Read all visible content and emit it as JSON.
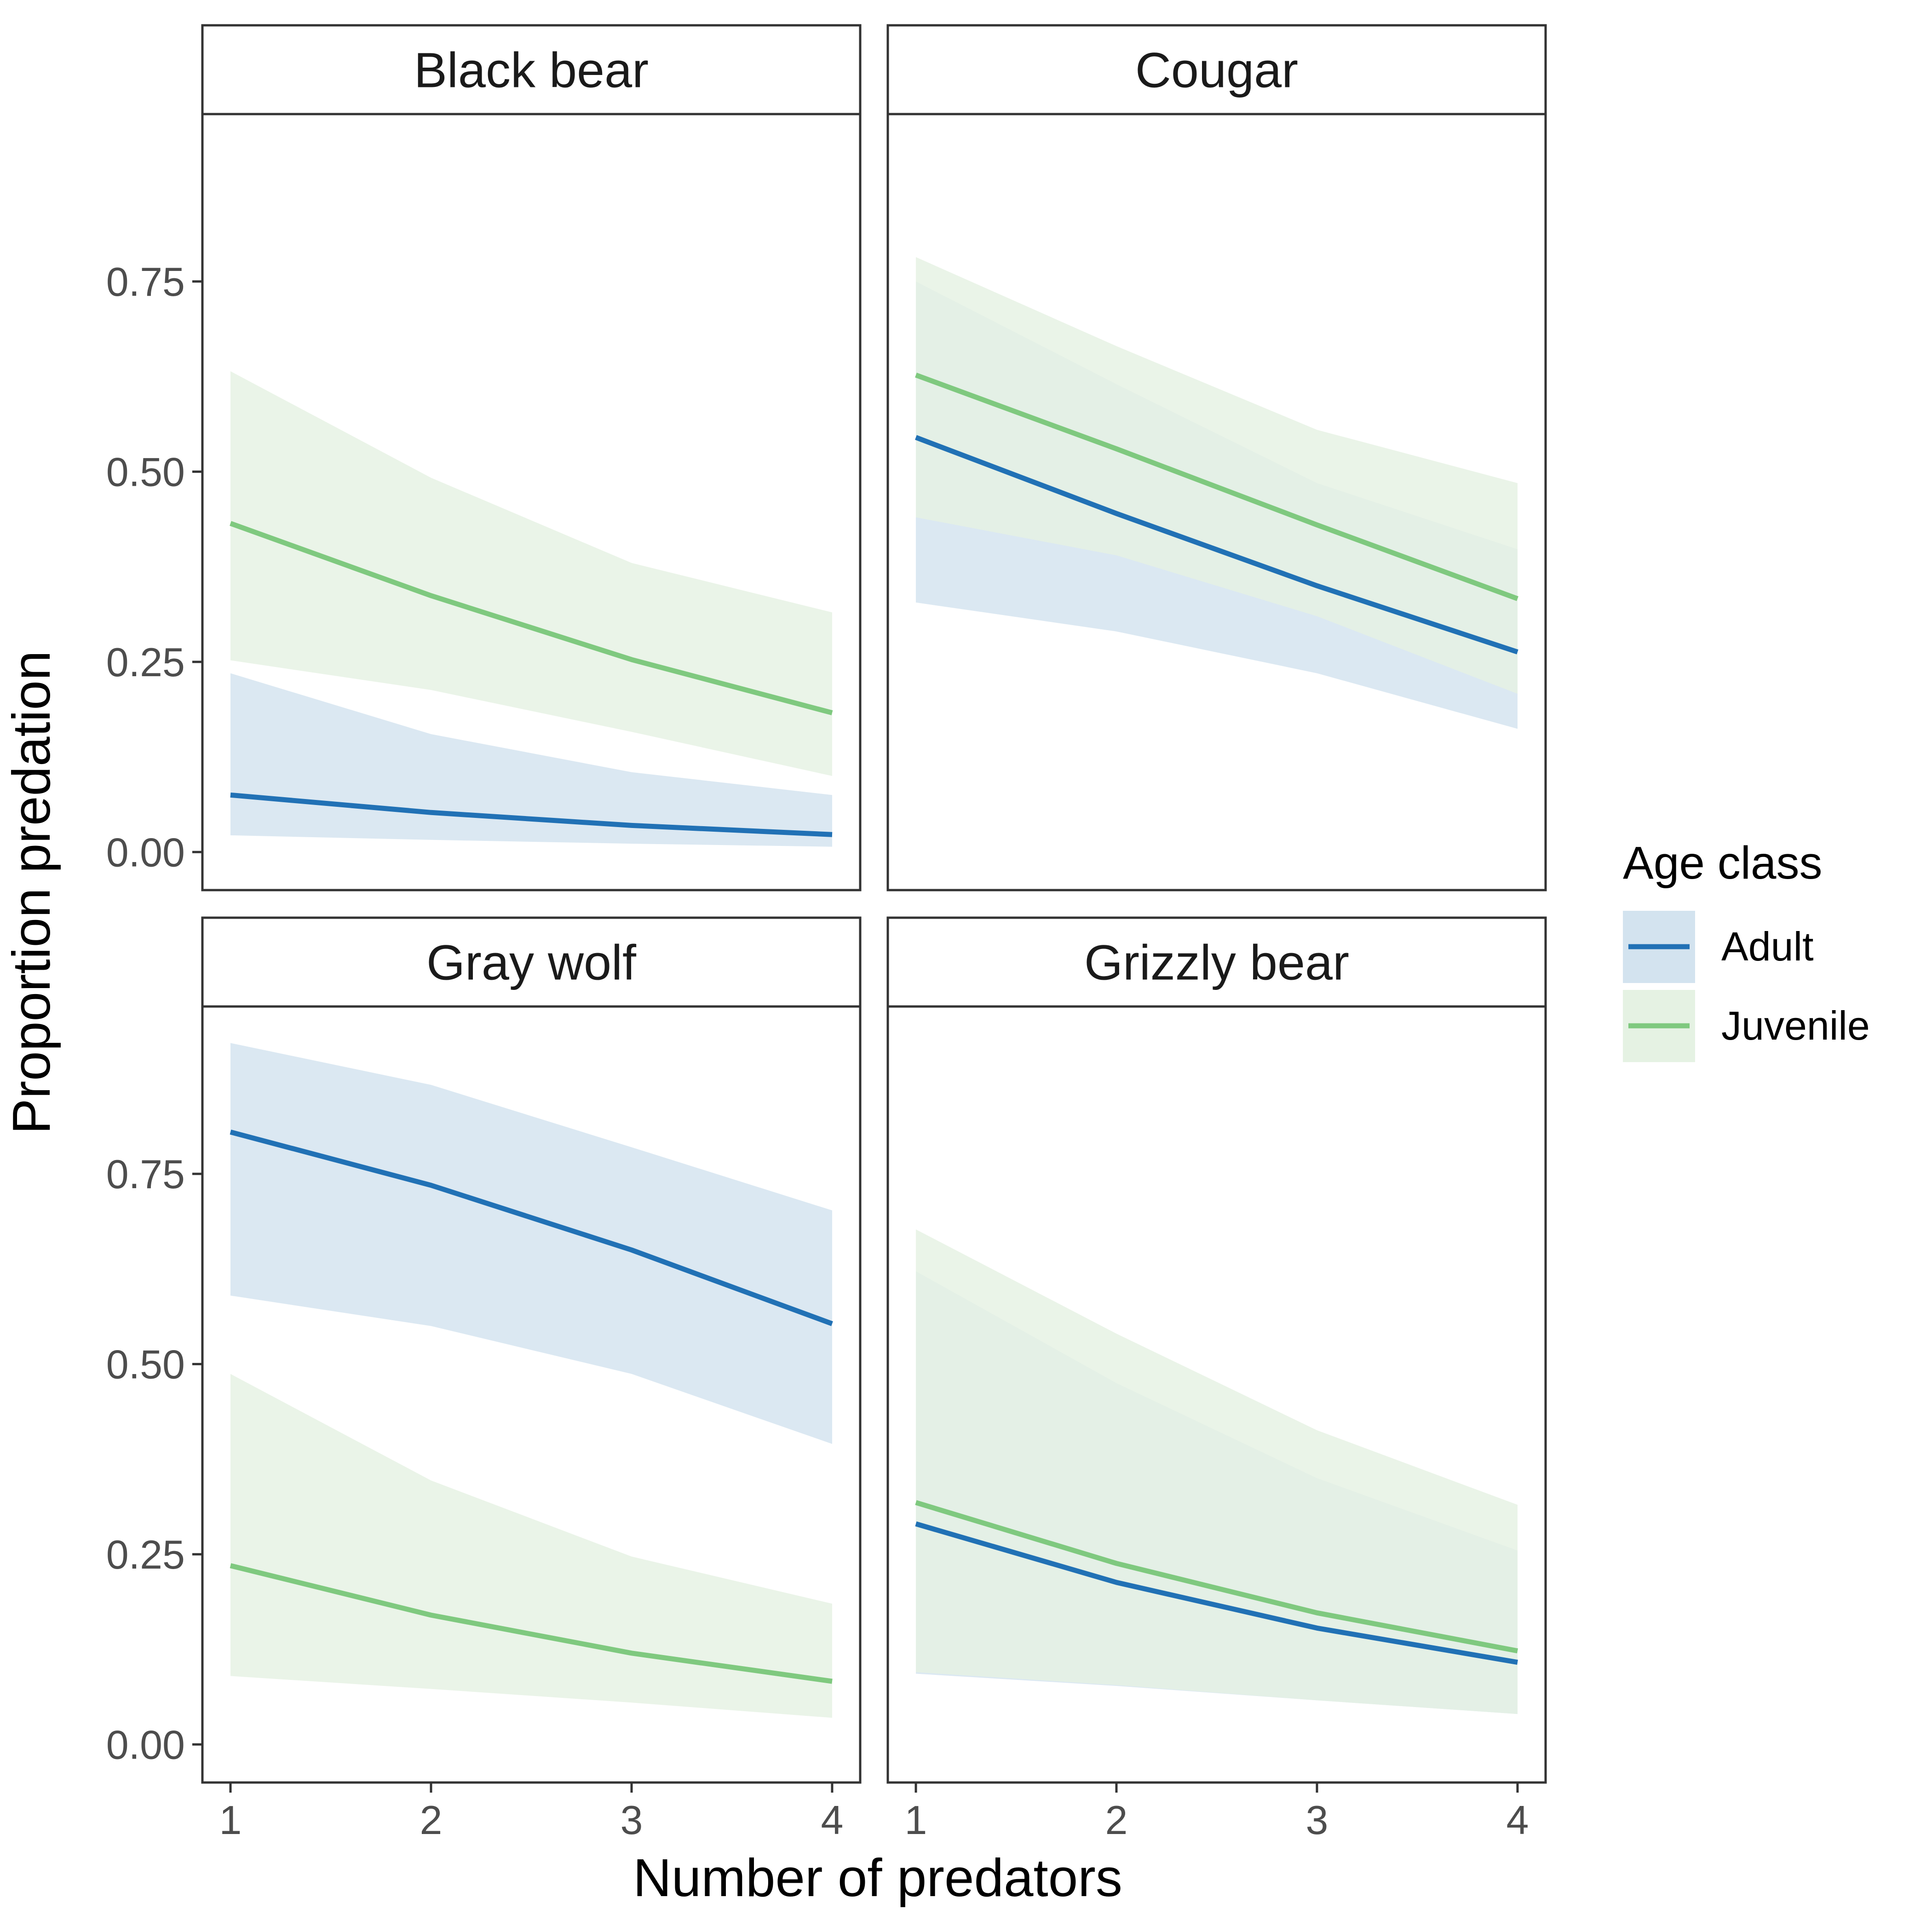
{
  "chart_data": {
    "type": "line",
    "facet": true,
    "xlabel": "Number of predators",
    "ylabel": "Proportion predation",
    "x": [
      1,
      2,
      3,
      4
    ],
    "x_ticks": [
      "1",
      "2",
      "3",
      "4"
    ],
    "y_ticks": [
      "0.00",
      "0.25",
      "0.50",
      "0.75"
    ],
    "ylim": [
      -0.05,
      0.97
    ],
    "grid": false,
    "legend": {
      "title": "Age class",
      "position": "right",
      "entries": [
        {
          "label": "Adult",
          "line_color": "#2171b5",
          "fill_color": "#d3e3ef"
        },
        {
          "label": "Juvenile",
          "line_color": "#7fc97f",
          "fill_color": "#e5f2e3"
        }
      ]
    },
    "panels": [
      {
        "title": "Black bear",
        "series": [
          {
            "name": "Adult",
            "values": [
              0.075,
              0.052,
              0.035,
              0.023
            ],
            "lower": [
              0.022,
              0.016,
              0.011,
              0.007
            ],
            "upper": [
              0.235,
              0.155,
              0.105,
              0.075
            ]
          },
          {
            "name": "Juvenile",
            "values": [
              0.432,
              0.337,
              0.253,
              0.183
            ],
            "lower": [
              0.252,
              0.213,
              0.158,
              0.1
            ],
            "upper": [
              0.632,
              0.492,
              0.38,
              0.315
            ]
          }
        ]
      },
      {
        "title": "Cougar",
        "series": [
          {
            "name": "Adult",
            "values": [
              0.545,
              0.445,
              0.35,
              0.263
            ],
            "lower": [
              0.328,
              0.29,
              0.235,
              0.162
            ],
            "upper": [
              0.75,
              0.615,
              0.485,
              0.398
            ]
          },
          {
            "name": "Juvenile",
            "values": [
              0.627,
              0.53,
              0.43,
              0.333
            ],
            "lower": [
              0.44,
              0.39,
              0.31,
              0.208
            ],
            "upper": [
              0.782,
              0.665,
              0.555,
              0.485
            ]
          }
        ]
      },
      {
        "title": "Gray wolf",
        "series": [
          {
            "name": "Adult",
            "values": [
              0.805,
              0.735,
              0.65,
              0.553
            ],
            "lower": [
              0.59,
              0.55,
              0.487,
              0.395
            ],
            "upper": [
              0.922,
              0.867,
              0.785,
              0.702
            ]
          },
          {
            "name": "Juvenile",
            "values": [
              0.235,
              0.17,
              0.12,
              0.083
            ],
            "lower": [
              0.09,
              0.073,
              0.055,
              0.035
            ],
            "upper": [
              0.487,
              0.347,
              0.247,
              0.185
            ]
          }
        ]
      },
      {
        "title": "Grizzly bear",
        "series": [
          {
            "name": "Adult",
            "values": [
              0.29,
              0.213,
              0.153,
              0.108
            ],
            "lower": [
              0.093,
              0.077,
              0.058,
              0.04
            ],
            "upper": [
              0.622,
              0.475,
              0.35,
              0.255
            ]
          },
          {
            "name": "Juvenile",
            "values": [
              0.318,
              0.238,
              0.173,
              0.123
            ],
            "lower": [
              0.095,
              0.078,
              0.058,
              0.04
            ],
            "upper": [
              0.677,
              0.54,
              0.413,
              0.315
            ]
          }
        ]
      }
    ]
  }
}
